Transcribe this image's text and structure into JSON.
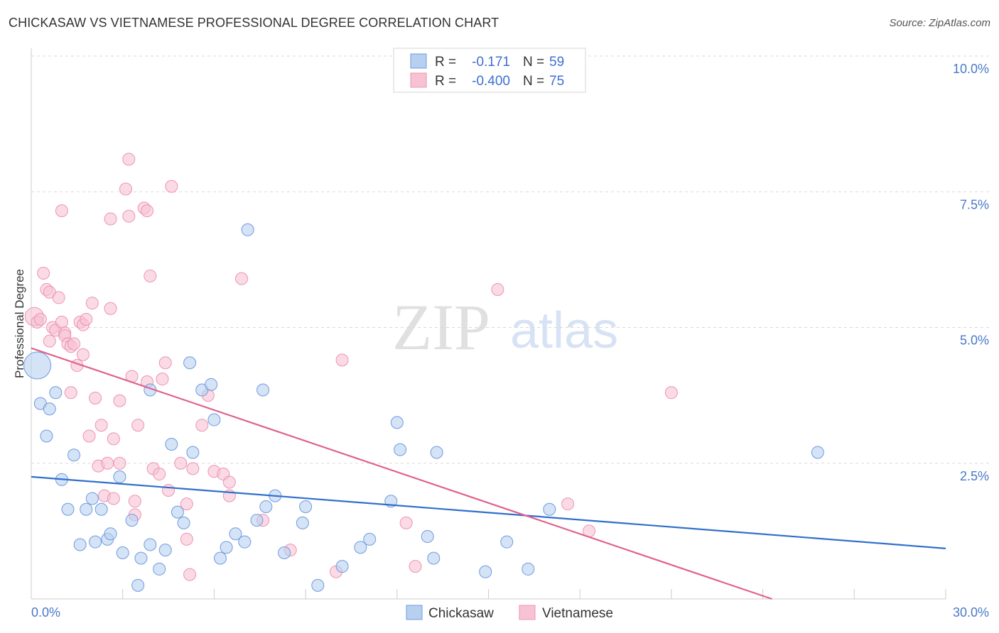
{
  "title": "CHICKASAW VS VIETNAMESE PROFESSIONAL DEGREE CORRELATION CHART",
  "source": "Source: ZipAtlas.com",
  "watermark": {
    "zip": "ZIP",
    "atlas": "atlas"
  },
  "colors": {
    "chickasaw_fill": "#b8d0f0",
    "chickasaw_stroke": "#6f9be0",
    "chickasaw_line": "#2f6fcc",
    "vietnamese_fill": "#f7c3d3",
    "vietnamese_stroke": "#ee93b0",
    "vietnamese_line": "#e0628f",
    "grid": "#d8d8d8",
    "tick_text": "#4a78c8"
  },
  "legend": {
    "rows": [
      {
        "r_label": "R =",
        "r_value": "-0.171",
        "n_label": "N =",
        "n_value": "59"
      },
      {
        "r_label": "R =",
        "r_value": "-0.400",
        "n_label": "N =",
        "n_value": "75"
      }
    ]
  },
  "bottom_legend": [
    "Chickasaw",
    "Vietnamese"
  ],
  "chart_data": {
    "type": "scatter",
    "title": "CHICKASAW VS VIETNAMESE PROFESSIONAL DEGREE CORRELATION CHART",
    "xlabel": "",
    "ylabel": "Professional Degree",
    "xlim": [
      0,
      30
    ],
    "ylim": [
      0,
      10
    ],
    "x_tick_labels": [
      "0.0%",
      "30.0%"
    ],
    "y_ticks": [
      2.5,
      5.0,
      7.5,
      10.0
    ],
    "y_tick_labels": [
      "2.5%",
      "5.0%",
      "7.5%",
      "10.0%"
    ],
    "series": [
      {
        "name": "Chickasaw",
        "r": -0.171,
        "n": 59,
        "trend": {
          "x0": 0,
          "y0": 2.25,
          "x1": 30,
          "y1": 0.93
        },
        "points": [
          [
            0.2,
            4.3
          ],
          [
            0.3,
            3.6
          ],
          [
            0.6,
            3.5
          ],
          [
            0.5,
            3.0
          ],
          [
            0.8,
            3.8
          ],
          [
            1.4,
            2.65
          ],
          [
            1.0,
            2.2
          ],
          [
            1.2,
            1.65
          ],
          [
            1.6,
            1.0
          ],
          [
            1.8,
            1.65
          ],
          [
            2.0,
            1.85
          ],
          [
            2.1,
            1.05
          ],
          [
            2.3,
            1.65
          ],
          [
            2.5,
            1.1
          ],
          [
            2.6,
            1.2
          ],
          [
            2.9,
            2.25
          ],
          [
            3.0,
            0.85
          ],
          [
            3.3,
            1.45
          ],
          [
            3.5,
            0.25
          ],
          [
            3.6,
            0.75
          ],
          [
            3.9,
            3.85
          ],
          [
            3.9,
            1.0
          ],
          [
            4.2,
            0.55
          ],
          [
            4.4,
            0.9
          ],
          [
            4.6,
            2.85
          ],
          [
            4.8,
            1.6
          ],
          [
            5.0,
            1.4
          ],
          [
            5.2,
            4.35
          ],
          [
            5.3,
            2.7
          ],
          [
            5.6,
            3.85
          ],
          [
            5.9,
            3.95
          ],
          [
            6.0,
            3.3
          ],
          [
            6.2,
            0.75
          ],
          [
            6.4,
            0.95
          ],
          [
            6.7,
            1.2
          ],
          [
            7.0,
            1.05
          ],
          [
            7.1,
            6.8
          ],
          [
            7.4,
            1.45
          ],
          [
            7.6,
            3.85
          ],
          [
            7.7,
            1.7
          ],
          [
            8.0,
            1.9
          ],
          [
            8.3,
            0.85
          ],
          [
            8.9,
            1.4
          ],
          [
            9.0,
            1.7
          ],
          [
            9.4,
            0.25
          ],
          [
            10.2,
            0.6
          ],
          [
            10.8,
            0.95
          ],
          [
            11.1,
            1.1
          ],
          [
            11.8,
            1.8
          ],
          [
            12.0,
            3.25
          ],
          [
            12.1,
            2.75
          ],
          [
            13.0,
            1.15
          ],
          [
            13.2,
            0.75
          ],
          [
            13.3,
            2.7
          ],
          [
            14.9,
            0.5
          ],
          [
            15.6,
            1.05
          ],
          [
            16.3,
            0.55
          ],
          [
            17.0,
            1.65
          ],
          [
            25.8,
            2.7
          ]
        ]
      },
      {
        "name": "Vietnamese",
        "r": -0.4,
        "n": 75,
        "trend": {
          "x0": 0,
          "y0": 4.62,
          "x1": 24.3,
          "y1": 0.0
        },
        "points": [
          [
            0.1,
            5.2
          ],
          [
            0.2,
            5.1
          ],
          [
            0.3,
            5.15
          ],
          [
            0.4,
            6.0
          ],
          [
            0.5,
            5.7
          ],
          [
            0.6,
            5.65
          ],
          [
            0.6,
            4.75
          ],
          [
            0.7,
            5.0
          ],
          [
            0.8,
            4.95
          ],
          [
            0.9,
            5.55
          ],
          [
            1.0,
            7.15
          ],
          [
            1.0,
            5.1
          ],
          [
            1.1,
            4.9
          ],
          [
            1.1,
            4.85
          ],
          [
            1.2,
            4.7
          ],
          [
            1.3,
            4.65
          ],
          [
            1.3,
            3.8
          ],
          [
            1.4,
            4.7
          ],
          [
            1.5,
            4.3
          ],
          [
            1.6,
            5.1
          ],
          [
            1.7,
            5.05
          ],
          [
            1.7,
            4.5
          ],
          [
            1.8,
            5.15
          ],
          [
            1.9,
            3.0
          ],
          [
            2.0,
            5.45
          ],
          [
            2.1,
            3.7
          ],
          [
            2.2,
            2.45
          ],
          [
            2.3,
            3.2
          ],
          [
            2.4,
            1.9
          ],
          [
            2.5,
            2.5
          ],
          [
            2.6,
            7.0
          ],
          [
            2.6,
            5.35
          ],
          [
            2.7,
            1.85
          ],
          [
            2.7,
            2.95
          ],
          [
            2.9,
            3.65
          ],
          [
            2.9,
            2.5
          ],
          [
            3.1,
            7.55
          ],
          [
            3.2,
            7.05
          ],
          [
            3.2,
            8.1
          ],
          [
            3.3,
            4.1
          ],
          [
            3.4,
            1.8
          ],
          [
            3.4,
            1.55
          ],
          [
            3.5,
            3.2
          ],
          [
            3.7,
            7.2
          ],
          [
            3.8,
            7.15
          ],
          [
            3.8,
            4.0
          ],
          [
            3.9,
            5.95
          ],
          [
            4.0,
            2.4
          ],
          [
            4.2,
            2.3
          ],
          [
            4.3,
            4.05
          ],
          [
            4.4,
            4.35
          ],
          [
            4.5,
            2.0
          ],
          [
            4.6,
            7.6
          ],
          [
            4.9,
            2.5
          ],
          [
            5.1,
            1.75
          ],
          [
            5.1,
            1.1
          ],
          [
            5.2,
            0.45
          ],
          [
            5.3,
            2.4
          ],
          [
            5.6,
            3.2
          ],
          [
            5.8,
            3.75
          ],
          [
            6.0,
            2.35
          ],
          [
            6.3,
            2.3
          ],
          [
            6.5,
            1.9
          ],
          [
            6.5,
            2.15
          ],
          [
            6.9,
            5.9
          ],
          [
            7.6,
            1.45
          ],
          [
            8.5,
            0.9
          ],
          [
            10.0,
            0.5
          ],
          [
            10.2,
            4.4
          ],
          [
            12.3,
            1.4
          ],
          [
            12.6,
            0.6
          ],
          [
            15.3,
            5.7
          ],
          [
            17.6,
            1.75
          ],
          [
            18.3,
            1.25
          ],
          [
            21.0,
            3.8
          ]
        ]
      }
    ]
  }
}
